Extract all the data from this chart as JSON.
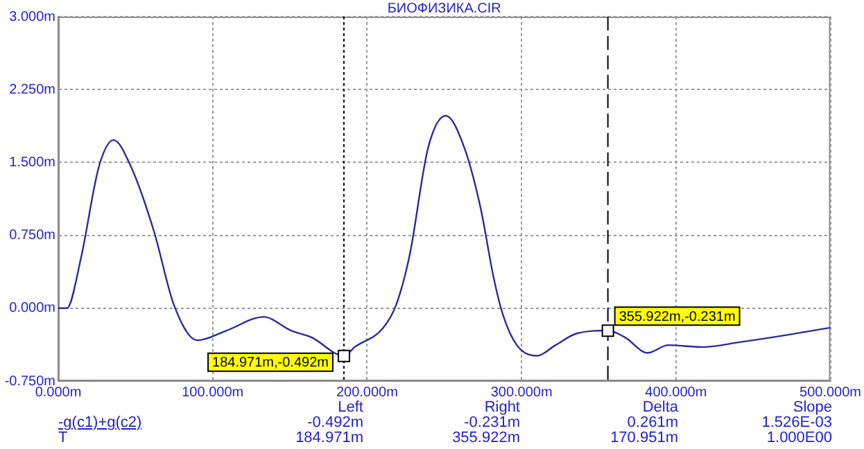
{
  "chart_data": {
    "type": "line",
    "title": "БИОФИЗИКА.CIR",
    "x": [
      0,
      5.6,
      14.5,
      26.4,
      35.8,
      47,
      62,
      75,
      90,
      109,
      133,
      150.7,
      164,
      184.971,
      192,
      210,
      218.7,
      227.6,
      239.5,
      251,
      263,
      273.5,
      282,
      288,
      297,
      310,
      322,
      335.7,
      355.922,
      367,
      381.6,
      395,
      417,
      441,
      470,
      500
    ],
    "series": [
      {
        "name": "-g(c1)+g(c2)",
        "color": "#2b2b9b",
        "values": [
          0,
          0,
          0.5,
          1.46,
          1.73,
          1.46,
          0.79,
          0.03,
          -0.33,
          -0.23,
          -0.09,
          -0.23,
          -0.3,
          -0.49,
          -0.4,
          -0.21,
          0.03,
          0.55,
          1.65,
          1.98,
          1.65,
          1.03,
          0.31,
          -0.07,
          -0.38,
          -0.49,
          -0.38,
          -0.26,
          -0.23,
          -0.3,
          -0.46,
          -0.38,
          -0.4,
          -0.35,
          -0.28,
          -0.2
        ]
      }
    ],
    "xlim": [
      0,
      500
    ],
    "ylim": [
      -0.75,
      3
    ],
    "xticks": [
      {
        "value": 0,
        "label": "0.000m"
      },
      {
        "value": 100,
        "label": "100.000m"
      },
      {
        "value": 200,
        "label": "200.000m"
      },
      {
        "value": 300,
        "label": "300.000m"
      },
      {
        "value": 400,
        "label": "400.000m"
      },
      {
        "value": 500,
        "label": "500.000m"
      }
    ],
    "yticks": [
      {
        "value": -0.75,
        "label": "-0.750m"
      },
      {
        "value": 0,
        "label": "0.000m"
      },
      {
        "value": 0.75,
        "label": "0.750m"
      },
      {
        "value": 1.5,
        "label": "1.500m"
      },
      {
        "value": 2.25,
        "label": "2.250m"
      },
      {
        "value": 3,
        "label": "3.000m"
      }
    ],
    "grid": true,
    "marker": "none",
    "line_style": "solid",
    "legend": false,
    "ref_lines": [
      {
        "axis": "x",
        "value": 184.971,
        "color": "#000000",
        "line_style": "dotted"
      },
      {
        "axis": "x",
        "value": 355.922,
        "color": "#000000",
        "line_style": "dashed"
      }
    ],
    "annotations": [
      {
        "text": "184.971m,-0.492m",
        "x": 184.971,
        "y": -0.492
      },
      {
        "text": "355.922m,-0.231m",
        "x": 355.922,
        "y": -0.231
      },
      "Left",
      "Right",
      "Delta",
      "Slope",
      "-0.492m",
      "-0.231m",
      "0.261m",
      "1.526E-03",
      "T",
      "184.971m",
      "355.922m",
      "170.951m",
      "1.000E00"
    ]
  }
}
